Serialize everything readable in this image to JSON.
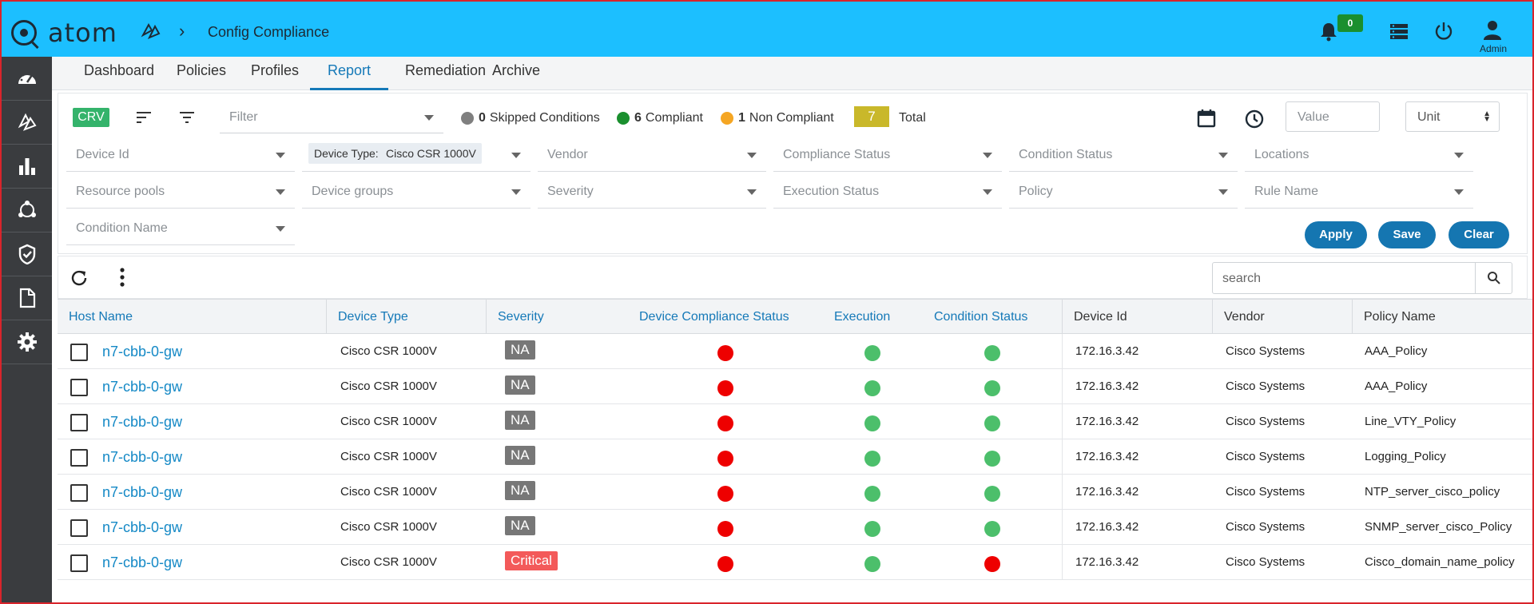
{
  "app": {
    "logo_text": "atom",
    "breadcrumb_title": "Config Compliance",
    "notification_count": "0",
    "user_label": "Admin"
  },
  "tabs": [
    "Dashboard",
    "Policies",
    "Profiles",
    "Report",
    "Remediation",
    "Archive"
  ],
  "active_tab": "Report",
  "filter_bar": {
    "crv_label": "CRV",
    "filter_placeholder": "Filter",
    "stats": [
      {
        "count": "0",
        "label": "Skipped Conditions",
        "color": "#7f7f7f"
      },
      {
        "count": "6",
        "label": "Compliant",
        "color": "#1a8f2e"
      },
      {
        "count": "1",
        "label": "Non Compliant",
        "color": "#f5a623"
      }
    ],
    "total_count": "7",
    "total_label": "Total",
    "value_placeholder": "Value",
    "unit_label": "Unit"
  },
  "fields": {
    "device_id": "Device Id",
    "device_type_label": "Device Type:",
    "device_type_value": "Cisco CSR 1000V",
    "vendor": "Vendor",
    "compliance_status": "Compliance Status",
    "condition_status": "Condition Status",
    "locations": "Locations",
    "resource_pools": "Resource pools",
    "device_groups": "Device groups",
    "severity": "Severity",
    "execution_status": "Execution Status",
    "policy": "Policy",
    "rule_name": "Rule Name",
    "condition_name": "Condition Name"
  },
  "buttons": {
    "apply": "Apply",
    "save": "Save",
    "clear": "Clear"
  },
  "search_placeholder": "search",
  "table": {
    "headers": [
      "Host Name",
      "Device Type",
      "Severity",
      "Device Compliance Status",
      "Execution",
      "Condition Status",
      "Device Id",
      "Vendor",
      "Policy Name"
    ],
    "rows": [
      {
        "host": "n7-cbb-0-gw",
        "device_type": "Cisco CSR 1000V",
        "severity": "NA",
        "compliance": "red",
        "execution": "green",
        "condition": "green",
        "device_id": "172.16.3.42",
        "vendor": "Cisco Systems",
        "policy": "AAA_Policy"
      },
      {
        "host": "n7-cbb-0-gw",
        "device_type": "Cisco CSR 1000V",
        "severity": "NA",
        "compliance": "red",
        "execution": "green",
        "condition": "green",
        "device_id": "172.16.3.42",
        "vendor": "Cisco Systems",
        "policy": "AAA_Policy"
      },
      {
        "host": "n7-cbb-0-gw",
        "device_type": "Cisco CSR 1000V",
        "severity": "NA",
        "compliance": "red",
        "execution": "green",
        "condition": "green",
        "device_id": "172.16.3.42",
        "vendor": "Cisco Systems",
        "policy": "Line_VTY_Policy"
      },
      {
        "host": "n7-cbb-0-gw",
        "device_type": "Cisco CSR 1000V",
        "severity": "NA",
        "compliance": "red",
        "execution": "green",
        "condition": "green",
        "device_id": "172.16.3.42",
        "vendor": "Cisco Systems",
        "policy": "Logging_Policy"
      },
      {
        "host": "n7-cbb-0-gw",
        "device_type": "Cisco CSR 1000V",
        "severity": "NA",
        "compliance": "red",
        "execution": "green",
        "condition": "green",
        "device_id": "172.16.3.42",
        "vendor": "Cisco Systems",
        "policy": "NTP_server_cisco_policy"
      },
      {
        "host": "n7-cbb-0-gw",
        "device_type": "Cisco CSR 1000V",
        "severity": "NA",
        "compliance": "red",
        "execution": "green",
        "condition": "green",
        "device_id": "172.16.3.42",
        "vendor": "Cisco Systems",
        "policy": "SNMP_server_cisco_Policy"
      },
      {
        "host": "n7-cbb-0-gw",
        "device_type": "Cisco CSR 1000V",
        "severity": "Critical",
        "compliance": "red",
        "execution": "green",
        "condition": "red",
        "device_id": "172.16.3.42",
        "vendor": "Cisco Systems",
        "policy": "Cisco_domain_name_policy"
      }
    ]
  },
  "icons": {
    "sidebar": [
      "dashboard-gauge-icon",
      "compliance-shapes-icon",
      "bar-chart-icon",
      "network-nodes-icon",
      "shield-check-icon",
      "document-icon",
      "settings-gear-icon"
    ],
    "top": [
      "bell-icon",
      "server-list-icon",
      "power-icon",
      "user-icon"
    ]
  },
  "colors": {
    "topbar": "#1cbfff",
    "sidebar": "#3a3c3f",
    "accent": "#1576b1",
    "compliant": "#4cbf6b",
    "non_compliant": "#ee0000"
  }
}
